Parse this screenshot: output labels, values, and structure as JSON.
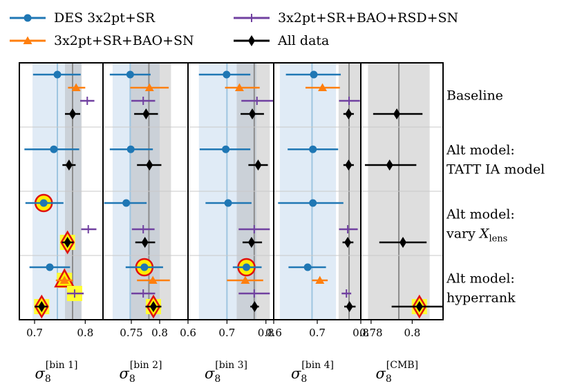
{
  "chart_data": {
    "type": "scatter",
    "title": "",
    "series": [
      {
        "name": "DES 3x2pt+SR",
        "color": "#1f77b4",
        "marker": "circle"
      },
      {
        "name": "3x2pt+SR+BAO+SN",
        "color": "#ff7f0e",
        "marker": "triangle"
      },
      {
        "name": "3x2pt+SR+BAO+RSD+SN",
        "color": "#7040a0",
        "marker": "plus"
      },
      {
        "name": "All data",
        "color": "#000000",
        "marker": "diamond"
      }
    ],
    "rows": [
      {
        "label_lines": [
          "Baseline"
        ]
      },
      {
        "label_lines": [
          "Alt model:",
          "TATT IA model"
        ]
      },
      {
        "label_lines": [
          "Alt model:",
          "vary X_lens"
        ]
      },
      {
        "label_lines": [
          "Alt model:",
          "hyperrank"
        ]
      }
    ],
    "panels": [
      {
        "xlabel": "σ8 [bin 1]",
        "xlabel_base": "σ",
        "xlabel_sub": "8",
        "xlabel_sup": "[bin 1]",
        "xlim": [
          0.67,
          0.835
        ],
        "ticks": [
          {
            "v": 0.7,
            "label": "0.7"
          },
          {
            "v": 0.8,
            "label": "0.8"
          }
        ],
        "blue_band": [
          0.696,
          0.792
        ],
        "blue_center": 0.745,
        "gray_band": [
          0.76,
          0.793
        ],
        "gray_center": 0.775,
        "points": [
          {
            "row": 0,
            "series": 0,
            "value": 0.745,
            "lo": 0.697,
            "hi": 0.791
          },
          {
            "row": 0,
            "series": 1,
            "value": 0.782,
            "lo": 0.766,
            "hi": 0.8
          },
          {
            "row": 0,
            "series": 2,
            "value": 0.804,
            "lo": 0.79,
            "hi": 0.818
          },
          {
            "row": 0,
            "series": 3,
            "value": 0.775,
            "lo": 0.76,
            "hi": 0.79
          },
          {
            "row": 1,
            "series": 0,
            "value": 0.738,
            "lo": 0.68,
            "hi": 0.788
          },
          {
            "row": 1,
            "series": 3,
            "value": 0.768,
            "lo": 0.755,
            "hi": 0.781
          },
          {
            "row": 2,
            "series": 0,
            "value": 0.718,
            "lo": 0.682,
            "hi": 0.757,
            "highlight": "red"
          },
          {
            "row": 2,
            "series": 2,
            "value": 0.806,
            "lo": 0.792,
            "hi": 0.822
          },
          {
            "row": 2,
            "series": 3,
            "value": 0.765,
            "lo": 0.754,
            "hi": 0.777,
            "highlight": "red"
          },
          {
            "row": 3,
            "series": 0,
            "value": 0.73,
            "lo": 0.69,
            "hi": 0.77
          },
          {
            "row": 3,
            "series": 1,
            "value": 0.759,
            "lo": 0.742,
            "hi": 0.776,
            "highlight": "yellow"
          },
          {
            "row": 3,
            "series": 2,
            "value": 0.779,
            "lo": 0.764,
            "hi": 0.797,
            "highlight": "yellow"
          },
          {
            "row": 3,
            "series": 3,
            "value": 0.714,
            "lo": 0.7,
            "hi": 0.726,
            "highlight": "red"
          }
        ]
      },
      {
        "xlabel": "σ8 [bin 2]",
        "xlabel_base": "σ",
        "xlabel_sub": "8",
        "xlabel_sup": "[bin 2]",
        "xlim": [
          0.7,
          0.85
        ],
        "ticks": [
          {
            "v": 0.75,
            "label": "0.75"
          },
          {
            "v": 0.8,
            "label": "0.8"
          }
        ],
        "blue_band": [
          0.717,
          0.8
        ],
        "blue_center": 0.748,
        "gray_band": [
          0.748,
          0.82
        ],
        "gray_center": 0.781,
        "points": [
          {
            "row": 0,
            "series": 0,
            "value": 0.748,
            "lo": 0.712,
            "hi": 0.784
          },
          {
            "row": 0,
            "series": 1,
            "value": 0.782,
            "lo": 0.748,
            "hi": 0.816
          },
          {
            "row": 0,
            "series": 2,
            "value": 0.771,
            "lo": 0.75,
            "hi": 0.792
          },
          {
            "row": 0,
            "series": 3,
            "value": 0.776,
            "lo": 0.755,
            "hi": 0.797
          },
          {
            "row": 1,
            "series": 0,
            "value": 0.749,
            "lo": 0.712,
            "hi": 0.788
          },
          {
            "row": 1,
            "series": 3,
            "value": 0.782,
            "lo": 0.76,
            "hi": 0.803
          },
          {
            "row": 2,
            "series": 0,
            "value": 0.741,
            "lo": 0.702,
            "hi": 0.777
          },
          {
            "row": 2,
            "series": 2,
            "value": 0.771,
            "lo": 0.751,
            "hi": 0.791
          },
          {
            "row": 2,
            "series": 3,
            "value": 0.774,
            "lo": 0.757,
            "hi": 0.792
          },
          {
            "row": 3,
            "series": 0,
            "value": 0.773,
            "lo": 0.74,
            "hi": 0.806,
            "highlight": "red"
          },
          {
            "row": 3,
            "series": 1,
            "value": 0.788,
            "lo": 0.76,
            "hi": 0.818
          },
          {
            "row": 3,
            "series": 2,
            "value": 0.771,
            "lo": 0.75,
            "hi": 0.792
          },
          {
            "row": 3,
            "series": 3,
            "value": 0.789,
            "lo": 0.775,
            "hi": 0.803,
            "highlight": "red"
          }
        ]
      },
      {
        "xlabel": "σ8 [bin 3]",
        "xlabel_base": "σ",
        "xlabel_sub": "8",
        "xlabel_sup": "[bin 3]",
        "xlim": [
          0.6,
          0.82
        ],
        "ticks": [
          {
            "v": 0.6,
            "label": "0.6"
          },
          {
            "v": 0.7,
            "label": "0.7"
          },
          {
            "v": 0.8,
            "label": "0.8"
          }
        ],
        "blue_band": [
          0.628,
          0.776
        ],
        "blue_center": 0.7,
        "gray_band": [
          0.725,
          0.81
        ],
        "gray_center": 0.77,
        "points": [
          {
            "row": 0,
            "series": 0,
            "value": 0.699,
            "lo": 0.628,
            "hi": 0.76
          },
          {
            "row": 0,
            "series": 1,
            "value": 0.732,
            "lo": 0.695,
            "hi": 0.784
          },
          {
            "row": 0,
            "series": 2,
            "value": 0.777,
            "lo": 0.737,
            "hi": 0.82
          },
          {
            "row": 0,
            "series": 3,
            "value": 0.765,
            "lo": 0.735,
            "hi": 0.795
          },
          {
            "row": 1,
            "series": 0,
            "value": 0.697,
            "lo": 0.63,
            "hi": 0.76
          },
          {
            "row": 1,
            "series": 3,
            "value": 0.78,
            "lo": 0.755,
            "hi": 0.805
          },
          {
            "row": 2,
            "series": 0,
            "value": 0.703,
            "lo": 0.645,
            "hi": 0.763
          },
          {
            "row": 2,
            "series": 2,
            "value": 0.77,
            "lo": 0.73,
            "hi": 0.81
          },
          {
            "row": 2,
            "series": 3,
            "value": 0.763,
            "lo": 0.74,
            "hi": 0.79
          },
          {
            "row": 3,
            "series": 0,
            "value": 0.75,
            "lo": 0.715,
            "hi": 0.789,
            "highlight": "red"
          },
          {
            "row": 3,
            "series": 1,
            "value": 0.747,
            "lo": 0.7,
            "hi": 0.793
          },
          {
            "row": 3,
            "series": 2,
            "value": 0.77,
            "lo": 0.73,
            "hi": 0.81
          },
          {
            "row": 3,
            "series": 3,
            "value": 0.771,
            "lo": 0.76,
            "hi": 0.782
          }
        ]
      },
      {
        "xlabel": "σ8 [bin 4]",
        "xlabel_base": "σ",
        "xlabel_sub": "8",
        "xlabel_sup": "[bin 4]",
        "xlim": [
          0.6,
          0.8
        ],
        "ticks": [
          {
            "v": 0.6,
            "label": "0.6"
          },
          {
            "v": 0.7,
            "label": "0.7"
          },
          {
            "v": 0.8,
            "label": "0.8"
          }
        ],
        "blue_band": [
          0.614,
          0.743
        ],
        "blue_center": 0.688,
        "gray_band": [
          0.749,
          0.8
        ],
        "gray_center": 0.773,
        "points": [
          {
            "row": 0,
            "series": 0,
            "value": 0.692,
            "lo": 0.628,
            "hi": 0.754
          },
          {
            "row": 0,
            "series": 1,
            "value": 0.712,
            "lo": 0.673,
            "hi": 0.752
          },
          {
            "row": 0,
            "series": 2,
            "value": 0.773,
            "lo": 0.75,
            "hi": 0.798
          },
          {
            "row": 0,
            "series": 3,
            "value": 0.772,
            "lo": 0.76,
            "hi": 0.784
          },
          {
            "row": 1,
            "series": 0,
            "value": 0.69,
            "lo": 0.632,
            "hi": 0.748
          },
          {
            "row": 1,
            "series": 3,
            "value": 0.772,
            "lo": 0.76,
            "hi": 0.784
          },
          {
            "row": 2,
            "series": 0,
            "value": 0.69,
            "lo": 0.61,
            "hi": 0.76
          },
          {
            "row": 2,
            "series": 2,
            "value": 0.77,
            "lo": 0.75,
            "hi": 0.793
          },
          {
            "row": 2,
            "series": 3,
            "value": 0.77,
            "lo": 0.758,
            "hi": 0.783
          },
          {
            "row": 3,
            "series": 0,
            "value": 0.678,
            "lo": 0.634,
            "hi": 0.72
          },
          {
            "row": 3,
            "series": 1,
            "value": 0.706,
            "lo": 0.688,
            "hi": 0.724
          },
          {
            "row": 3,
            "series": 2,
            "value": 0.767,
            "lo": 0.756,
            "hi": 0.778
          },
          {
            "row": 3,
            "series": 3,
            "value": 0.774,
            "lo": 0.762,
            "hi": 0.788
          }
        ]
      },
      {
        "xlabel": "σ8 [CMB]",
        "xlabel_base": "σ",
        "xlabel_sub": "8",
        "xlabel_sup": "[CMB]",
        "xlim": [
          0.775,
          0.815
        ],
        "ticks": [
          {
            "v": 0.78,
            "label": "0.78"
          },
          {
            "v": 0.8,
            "label": "0.8"
          }
        ],
        "gray_band": [
          0.7785,
          0.8085
        ],
        "gray_center": 0.7935,
        "points": [
          {
            "row": 0,
            "series": 3,
            "value": 0.7925,
            "lo": 0.781,
            "hi": 0.805
          },
          {
            "row": 1,
            "series": 3,
            "value": 0.789,
            "lo": 0.777,
            "hi": 0.802
          },
          {
            "row": 2,
            "series": 3,
            "value": 0.7955,
            "lo": 0.784,
            "hi": 0.807
          },
          {
            "row": 3,
            "series": 3,
            "value": 0.8035,
            "lo": 0.79,
            "hi": 0.815,
            "highlight": "red"
          }
        ]
      }
    ]
  }
}
